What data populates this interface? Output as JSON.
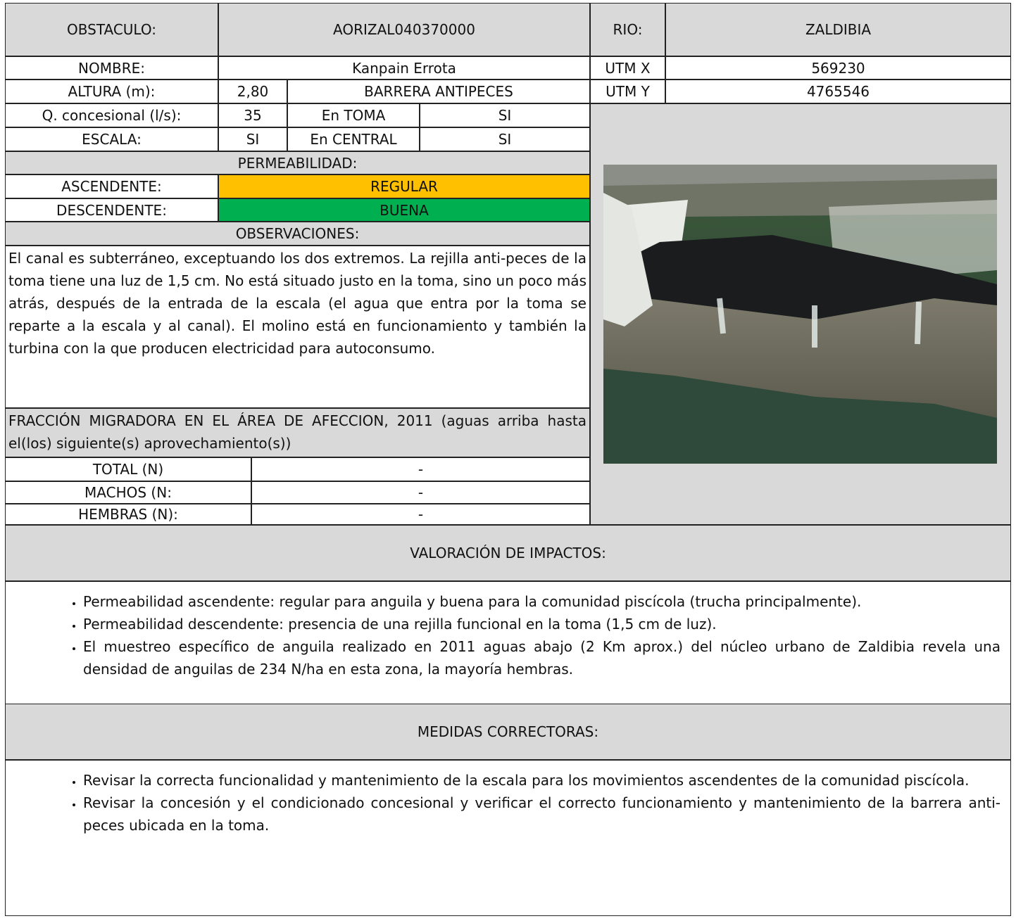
{
  "ficha": {
    "obstaculo": {
      "label": "OBSTACULO:",
      "value": "AORIZAL040370000"
    },
    "rio": {
      "label": "RIO:",
      "value": "ZALDIBIA"
    },
    "nombre": {
      "label": "NOMBRE:",
      "value": "Kanpain Errota"
    },
    "utm_x": {
      "label": "UTM X",
      "value": "569230"
    },
    "altura": {
      "label": "ALTURA (m):",
      "value": "2,80",
      "extra": "BARRERA ANTIPECES"
    },
    "utm_y": {
      "label": "UTM Y",
      "value": "4765546"
    },
    "q_concesional": {
      "label": "Q. concesional (l/s):",
      "value": "35",
      "sub_label": "En TOMA",
      "sub_value": "SI"
    },
    "escala": {
      "label": "ESCALA:",
      "value": "SI",
      "sub_label": "En CENTRAL",
      "sub_value": "SI"
    }
  },
  "permeabilidad": {
    "title": "PERMEABILIDAD:",
    "ascendente": {
      "label": "ASCENDENTE:",
      "value": "REGULAR"
    },
    "descendente": {
      "label": "DESCENDENTE:",
      "value": "BUENA"
    }
  },
  "observaciones": {
    "title": "OBSERVACIONES:",
    "text": "El canal es subterráneo, exceptuando los dos extremos. La rejilla anti-peces de la toma tiene una luz de 1,5 cm. No está situado justo en la toma, sino un poco más atrás, después de la entrada de la escala (el agua que entra por la toma se reparte a la escala y al canal). El molino está en funcionamiento y también la turbina con la que producen electricidad para autoconsumo."
  },
  "fraccion": {
    "title": "FRACCIÓN MIGRADORA EN EL ÁREA DE AFECCION, 2011 (aguas arriba hasta el(los) siguiente(s) aprovechamiento(s))",
    "rows": [
      {
        "label": "TOTAL (N)",
        "value": "-"
      },
      {
        "label": "MACHOS (N:",
        "value": "-"
      },
      {
        "label": "HEMBRAS (N):",
        "value": "-"
      }
    ]
  },
  "valoracion": {
    "title": "VALORACIÓN DE IMPACTOS:",
    "items": [
      "Permeabilidad ascendente: regular para anguila y buena para la comunidad piscícola (trucha principalmente).",
      "Permeabilidad descendente: presencia de una rejilla funcional en la toma (1,5 cm de luz).",
      "El muestreo específico de anguila realizado en 2011 aguas abajo (2 Km aprox.) del núcleo urbano de Zaldibia revela una densidad de anguilas de 234 N/ha en esta zona, la mayoría hembras."
    ]
  },
  "medidas": {
    "title": "MEDIDAS CORRECTORAS:",
    "items": [
      "Revisar la correcta funcionalidad y mantenimiento de la escala para los movimientos ascendentes de la comunidad piscícola.",
      "Revisar la concesión y el condicionado concesional y verificar el correcto funcionamiento y mantenimiento de la barrera anti-peces ubicada en la toma."
    ]
  }
}
